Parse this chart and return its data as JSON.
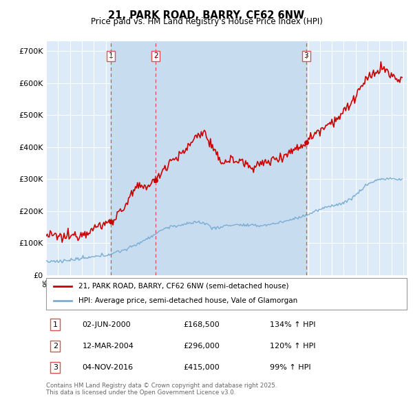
{
  "title": "21, PARK ROAD, BARRY, CF62 6NW",
  "subtitle": "Price paid vs. HM Land Registry's House Price Index (HPI)",
  "y_ticks": [
    0,
    100000,
    200000,
    300000,
    400000,
    500000,
    600000,
    700000
  ],
  "y_tick_labels": [
    "£0",
    "£100K",
    "£200K",
    "£300K",
    "£400K",
    "£500K",
    "£600K",
    "£700K"
  ],
  "hpi_color": "#7aadd4",
  "price_color": "#cc0000",
  "vline_color": "#e05050",
  "bg_chart": "#ddeaf7",
  "bg_sale_band": "#c8dcf0",
  "sales": [
    {
      "date": 2000.42,
      "price": 168500,
      "label": "1"
    },
    {
      "date": 2004.19,
      "price": 296000,
      "label": "2"
    },
    {
      "date": 2016.84,
      "price": 415000,
      "label": "3"
    }
  ],
  "sale_table": [
    {
      "num": "1",
      "date": "02-JUN-2000",
      "price": "£168,500",
      "hpi": "134% ↑ HPI"
    },
    {
      "num": "2",
      "date": "12-MAR-2004",
      "price": "£296,000",
      "hpi": "120% ↑ HPI"
    },
    {
      "num": "3",
      "date": "04-NOV-2016",
      "price": "£415,000",
      "hpi": "99% ↑ HPI"
    }
  ],
  "legend_price_label": "21, PARK ROAD, BARRY, CF62 6NW (semi-detached house)",
  "legend_hpi_label": "HPI: Average price, semi-detached house, Vale of Glamorgan",
  "footer": "Contains HM Land Registry data © Crown copyright and database right 2025.\nThis data is licensed under the Open Government Licence v3.0."
}
